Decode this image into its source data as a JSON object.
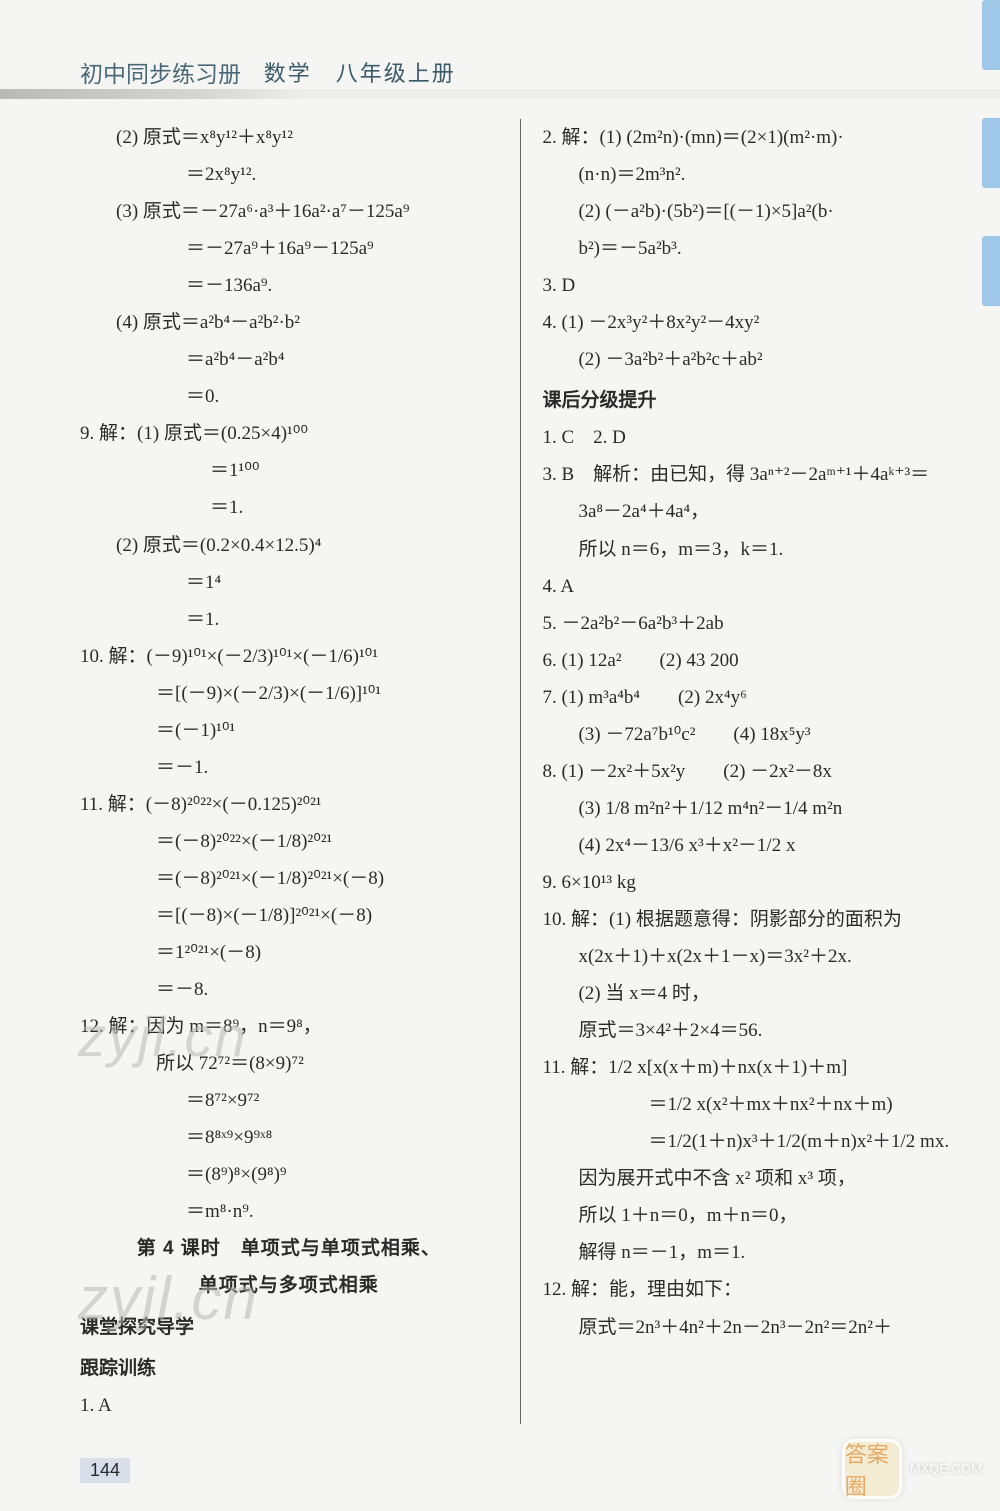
{
  "header": {
    "script_title": "初中同步练习册",
    "rest_title": "数学　八年级上册"
  },
  "left_col": [
    {
      "cls": "line indent-1",
      "t": "(2) 原式＝x⁸y¹²＋x⁸y¹²"
    },
    {
      "cls": "line indent-3",
      "t": "＝2x⁸y¹²."
    },
    {
      "cls": "line indent-1",
      "t": "(3) 原式＝－27a⁶·a³＋16a²·a⁷－125a⁹"
    },
    {
      "cls": "line indent-3",
      "t": "＝－27a⁹＋16a⁹－125a⁹"
    },
    {
      "cls": "line indent-3",
      "t": "＝－136a⁹."
    },
    {
      "cls": "line indent-1",
      "t": "(4) 原式＝a²b⁴－a²b²·b²"
    },
    {
      "cls": "line indent-3",
      "t": "＝a²b⁴－a²b⁴"
    },
    {
      "cls": "line indent-3",
      "t": "＝0."
    },
    {
      "cls": "line",
      "t": "9. 解：(1) 原式＝(0.25×4)¹⁰⁰"
    },
    {
      "cls": "line indent-4",
      "t": "＝1¹⁰⁰"
    },
    {
      "cls": "line indent-4",
      "t": "＝1."
    },
    {
      "cls": "line indent-1",
      "t": "(2) 原式＝(0.2×0.4×12.5)⁴"
    },
    {
      "cls": "line indent-3",
      "t": "＝1⁴"
    },
    {
      "cls": "line indent-3",
      "t": "＝1."
    },
    {
      "cls": "line",
      "t": "10. 解：(－9)¹⁰¹×(－2/3)¹⁰¹×(－1/6)¹⁰¹"
    },
    {
      "cls": "line indent-2",
      "t": "＝[(－9)×(－2/3)×(－1/6)]¹⁰¹"
    },
    {
      "cls": "line indent-2",
      "t": "＝(－1)¹⁰¹"
    },
    {
      "cls": "line indent-2",
      "t": "＝－1."
    },
    {
      "cls": "line",
      "t": "11. 解：(－8)²⁰²²×(－0.125)²⁰²¹"
    },
    {
      "cls": "line indent-2",
      "t": "＝(－8)²⁰²²×(－1/8)²⁰²¹"
    },
    {
      "cls": "line indent-2",
      "t": "＝(－8)²⁰²¹×(－1/8)²⁰²¹×(－8)"
    },
    {
      "cls": "line indent-2",
      "t": "＝[(－8)×(－1/8)]²⁰²¹×(－8)"
    },
    {
      "cls": "line indent-2",
      "t": "＝1²⁰²¹×(－8)"
    },
    {
      "cls": "line indent-2",
      "t": "＝－8."
    },
    {
      "cls": "line",
      "t": "12. 解：因为 m＝8⁹，n＝9⁸，"
    },
    {
      "cls": "line indent-2",
      "t": "所以 72⁷²＝(8×9)⁷²"
    },
    {
      "cls": "line indent-3",
      "t": "＝8⁷²×9⁷²"
    },
    {
      "cls": "line indent-3",
      "t": "＝8⁸ˣ⁹×9⁹ˣ⁸"
    },
    {
      "cls": "line indent-3",
      "t": "＝(8⁹)⁸×(9⁸)⁹"
    },
    {
      "cls": "line indent-3",
      "t": "＝m⁸·n⁹."
    },
    {
      "cls": "line bold center",
      "t": "第 4 课时　单项式与单项式相乘、"
    },
    {
      "cls": "line bold center",
      "t": "单项式与多项式相乘"
    },
    {
      "cls": "line section-title",
      "t": "课堂探究导学"
    },
    {
      "cls": "line section-title",
      "t": "跟踪训练"
    },
    {
      "cls": "line",
      "t": "1. A"
    }
  ],
  "right_col": [
    {
      "cls": "line",
      "t": "2. 解：(1) (2m²n)·(mn)＝(2×1)(m²·m)·"
    },
    {
      "cls": "line indent-1",
      "t": "(n·n)＝2m³n²."
    },
    {
      "cls": "line indent-1",
      "t": "(2) (－a²b)·(5b²)＝[(－1)×5]a²(b·"
    },
    {
      "cls": "line indent-1",
      "t": "b²)＝－5a²b³."
    },
    {
      "cls": "line",
      "t": "3. D"
    },
    {
      "cls": "line",
      "t": "4. (1) －2x³y²＋8x²y²－4xy²"
    },
    {
      "cls": "line indent-1",
      "t": "(2) －3a²b²＋a²b²c＋ab²"
    },
    {
      "cls": "line section-title",
      "t": "课后分级提升"
    },
    {
      "cls": "line",
      "t": "1. C　2. D"
    },
    {
      "cls": "line",
      "t": "3. B　解析：由已知，得 3aⁿ⁺²－2aᵐ⁺¹＋4aᵏ⁺³＝"
    },
    {
      "cls": "line indent-1",
      "t": "3a⁸－2a⁴＋4a⁴，"
    },
    {
      "cls": "line indent-1",
      "t": "所以 n＝6，m＝3，k＝1."
    },
    {
      "cls": "line",
      "t": "4. A"
    },
    {
      "cls": "line",
      "t": "5. －2a²b²－6a²b³＋2ab"
    },
    {
      "cls": "line",
      "t": "6. (1) 12a²　　(2) 43 200"
    },
    {
      "cls": "line",
      "t": "7. (1) m³a⁴b⁴　　(2) 2x⁴y⁶"
    },
    {
      "cls": "line indent-1",
      "t": "(3) －72a⁷b¹⁰c²　　(4) 18x⁵y³"
    },
    {
      "cls": "line",
      "t": "8. (1) －2x²＋5x²y　　(2) －2x²－8x"
    },
    {
      "cls": "line indent-1",
      "t": "(3) 1/8 m²n²＋1/12 m⁴n²－1/4 m²n"
    },
    {
      "cls": "line indent-1",
      "t": "(4) 2x⁴－13/6 x³＋x²－1/2 x"
    },
    {
      "cls": "line",
      "t": "9. 6×10¹³ kg"
    },
    {
      "cls": "line",
      "t": "10. 解：(1) 根据题意得：阴影部分的面积为"
    },
    {
      "cls": "line indent-1",
      "t": "x(2x＋1)＋x(2x＋1－x)＝3x²＋2x."
    },
    {
      "cls": "line indent-1",
      "t": "(2) 当 x＝4 时，"
    },
    {
      "cls": "line indent-1",
      "t": "原式＝3×4²＋2×4＝56."
    },
    {
      "cls": "line",
      "t": "11. 解：1/2 x[x(x＋m)＋nx(x＋1)＋m]"
    },
    {
      "cls": "line indent-3",
      "t": "＝1/2 x(x²＋mx＋nx²＋nx＋m)"
    },
    {
      "cls": "line indent-3",
      "t": "＝1/2(1＋n)x³＋1/2(m＋n)x²＋1/2 mx."
    },
    {
      "cls": "line indent-1",
      "t": "因为展开式中不含 x² 项和 x³ 项，"
    },
    {
      "cls": "line indent-1",
      "t": "所以 1＋n＝0，m＋n＝0，"
    },
    {
      "cls": "line indent-1",
      "t": "解得 n＝－1，m＝1."
    },
    {
      "cls": "line",
      "t": "12. 解：能，理由如下："
    },
    {
      "cls": "line indent-1",
      "t": "原式＝2n³＋4n²＋2n－2n³－2n²＝2n²＋"
    }
  ],
  "page_number": "144",
  "watermark_text": "zyjl.cn",
  "footer": {
    "logo_text": "答案圈",
    "site": "MXQE.COM"
  },
  "colors": {
    "background": "#f5f5f3",
    "text": "#2a2a2a",
    "header_accent": "#4a6a7a",
    "tab": "#9ec7e8",
    "pagenum_bg": "#d8dfeb",
    "watermark": "#b8b8b8"
  }
}
